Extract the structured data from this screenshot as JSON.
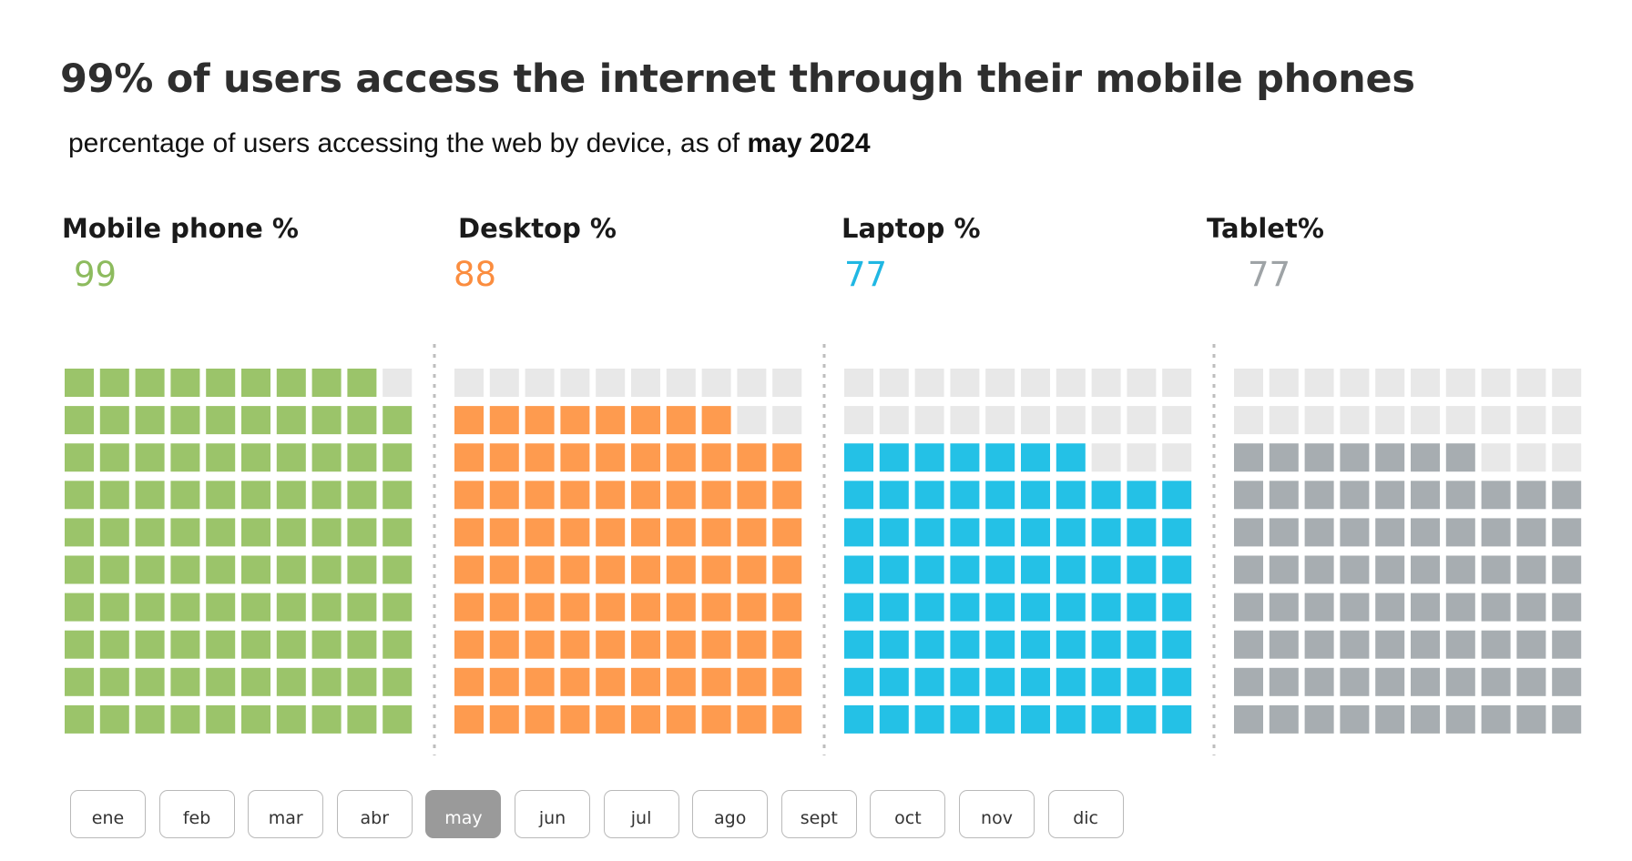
{
  "header": {
    "title": "99% of users access the internet through their mobile phones",
    "subtitle_prefix": "percentage of users accessing the web by device, as of",
    "subtitle_bold": "may 2024"
  },
  "chart_data": {
    "type": "waffle",
    "title": "99% of users access the internet through their mobile phones",
    "subtitle": "percentage of users accessing the web by device, as of may 2024",
    "grid": [
      10,
      10
    ],
    "series": [
      {
        "name": "Mobile phone %",
        "value": 99,
        "color": "#9bc46a"
      },
      {
        "name": "Desktop %",
        "value": 88,
        "color": "#fe9b4f"
      },
      {
        "name": "Laptop %",
        "value": 77,
        "color": "#24c1e6"
      },
      {
        "name": "Tablet%",
        "value": 77,
        "color": "#a7adb1"
      }
    ],
    "empty_color": "#e8e8e8"
  },
  "kpis": [
    {
      "label": "Mobile phone %",
      "value": "99",
      "color": "#8dbb5e"
    },
    {
      "label": "Desktop %",
      "value": "88",
      "color": "#fb8d3f"
    },
    {
      "label": "Laptop %",
      "value": "77",
      "color": "#20b7e3"
    },
    {
      "label": "Tablet%",
      "value": "77",
      "color": "#9ea3a6"
    }
  ],
  "months": {
    "items": [
      "ene",
      "feb",
      "mar",
      "abr",
      "may",
      "jun",
      "jul",
      "ago",
      "sept",
      "oct",
      "nov",
      "dic"
    ],
    "selected": "may"
  }
}
